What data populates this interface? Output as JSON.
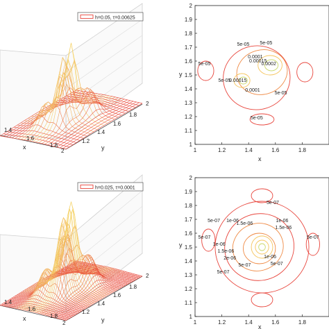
{
  "chart_data": [
    {
      "type": "surface",
      "panel": "top-left",
      "legend": "h=0.05, τ=0.00625",
      "xlabel": "x",
      "ylabel": "y",
      "x_ticks": [
        "1.4",
        "1.6",
        "1.8",
        "2"
      ],
      "y_ticks": [
        "1.2",
        "1.4",
        "1.6",
        "1.8",
        "2"
      ],
      "xlim": [
        1,
        2
      ],
      "ylim": [
        1,
        2
      ],
      "colors": {
        "mesh": "#e8453c",
        "peak": "#f5d36a"
      }
    },
    {
      "type": "contour",
      "panel": "top-right",
      "xlabel": "x",
      "ylabel": "y",
      "x_ticks": [
        "1",
        "1.2",
        "1.4",
        "1.6",
        "1.8"
      ],
      "y_ticks": [
        "1",
        "1.1",
        "1.2",
        "1.3",
        "1.4",
        "1.5",
        "1.6",
        "1.7",
        "1.8",
        "1.9",
        "2"
      ],
      "xlim": [
        1,
        2
      ],
      "ylim": [
        1,
        2
      ],
      "contour_labels": [
        {
          "text": "5e-05",
          "x": 1.53,
          "y": 1.72
        },
        {
          "text": "5e-05",
          "x": 1.36,
          "y": 1.71
        },
        {
          "text": "5e-05",
          "x": 1.07,
          "y": 1.57
        },
        {
          "text": "0.0001",
          "x": 1.45,
          "y": 1.62
        },
        {
          "text": "0.00015",
          "x": 1.47,
          "y": 1.59
        },
        {
          "text": "0.0002",
          "x": 1.55,
          "y": 1.57
        },
        {
          "text": "5e-05",
          "x": 1.22,
          "y": 1.45
        },
        {
          "text": "0.00015",
          "x": 1.32,
          "y": 1.45
        },
        {
          "text": "0.0001",
          "x": 1.43,
          "y": 1.38
        },
        {
          "text": "5e-05",
          "x": 1.64,
          "y": 1.36
        },
        {
          "text": "5e-05",
          "x": 1.46,
          "y": 1.18
        }
      ]
    },
    {
      "type": "surface",
      "panel": "bottom-left",
      "legend": "h=0.025, τ=0.0001",
      "xlabel": "x",
      "ylabel": "y",
      "x_ticks": [
        "1.4",
        "1.6",
        "1.8",
        "2"
      ],
      "y_ticks": [
        "1.2",
        "1.4",
        "1.6",
        "1.8",
        "2"
      ],
      "xlim": [
        1,
        2
      ],
      "ylim": [
        1,
        2
      ],
      "colors": {
        "mesh": "#e8453c",
        "peak": "#f5d36a"
      }
    },
    {
      "type": "contour",
      "panel": "bottom-right",
      "xlabel": "x",
      "ylabel": "y",
      "x_ticks": [
        "1",
        "1.2",
        "1.4",
        "1.6",
        "1.8"
      ],
      "y_ticks": [
        "1",
        "1.1",
        "1.2",
        "1.3",
        "1.4",
        "1.5",
        "1.6",
        "1.7",
        "1.8",
        "1.9",
        "2"
      ],
      "xlim": [
        1,
        2
      ],
      "ylim": [
        1,
        2
      ],
      "contour_labels": [
        {
          "text": "5e-07",
          "x": 1.58,
          "y": 1.81
        },
        {
          "text": "5e-07",
          "x": 1.14,
          "y": 1.68
        },
        {
          "text": "1e-06",
          "x": 1.28,
          "y": 1.68
        },
        {
          "text": "1.5e-06",
          "x": 1.37,
          "y": 1.66
        },
        {
          "text": "1e-06",
          "x": 1.65,
          "y": 1.68
        },
        {
          "text": "1.5e-06",
          "x": 1.66,
          "y": 1.63
        },
        {
          "text": "5e-07",
          "x": 1.07,
          "y": 1.56
        },
        {
          "text": "5e-07",
          "x": 1.88,
          "y": 1.56
        },
        {
          "text": "1e-06",
          "x": 1.18,
          "y": 1.51
        },
        {
          "text": "1.5e-06",
          "x": 1.23,
          "y": 1.46
        },
        {
          "text": "2e-06",
          "x": 1.26,
          "y": 1.41
        },
        {
          "text": "1e-06",
          "x": 1.56,
          "y": 1.42
        },
        {
          "text": "5e-07",
          "x": 1.37,
          "y": 1.36
        },
        {
          "text": "5e-07",
          "x": 1.61,
          "y": 1.37
        },
        {
          "text": "5e-07",
          "x": 1.21,
          "y": 1.31
        }
      ]
    }
  ]
}
